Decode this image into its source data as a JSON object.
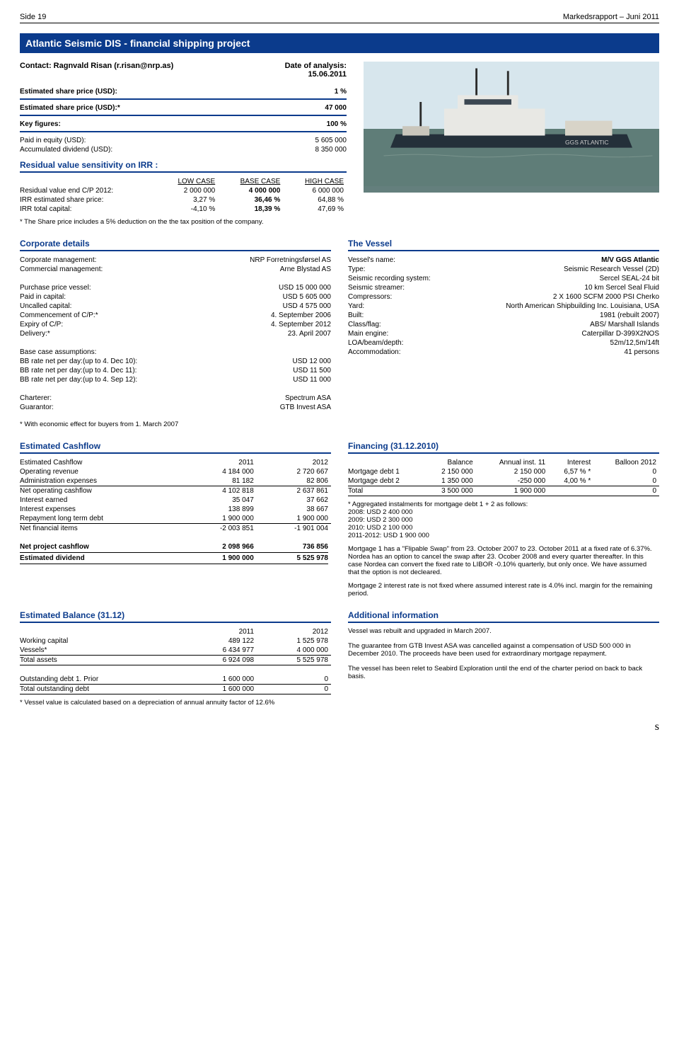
{
  "header": {
    "left": "Side 19",
    "right": "Markedsrapport – Juni 2011"
  },
  "title": "Atlantic Seismic DIS - financial shipping project",
  "contact": "Contact: Ragnvald Risan (r.risan@nrp.as)",
  "analysis": {
    "label": "Date of analysis:",
    "date": "15.06.2011"
  },
  "estimates": {
    "est_price_label": "Estimated share price (USD):",
    "est_price_value": "1 %",
    "est_price_star_label": "Estimated share price (USD):*",
    "est_price_star_value": "47 000",
    "key_figures_label": "Key figures:",
    "key_figures_value": "100 %",
    "paid_equity_label": "Paid in equity (USD):",
    "paid_equity_value": "5 605 000",
    "acc_div_label": "Accumulated dividend (USD):",
    "acc_div_value": "8 350 000"
  },
  "sensitivity": {
    "heading": "Residual value sensitivity on IRR :",
    "cols": [
      "",
      "LOW CASE",
      "BASE CASE",
      "HIGH CASE"
    ],
    "rows": [
      [
        "Residual value end C/P 2012:",
        "2 000 000",
        "4 000 000",
        "6 000 000"
      ],
      [
        "IRR estimated share price:",
        "3,27 %",
        "36,46 %",
        "64,88 %"
      ],
      [
        "IRR total capital:",
        "-4,10 %",
        "18,39 %",
        "47,69 %"
      ]
    ],
    "note": "* The Share price includes a 5% deduction on the the tax position of the company."
  },
  "corporate": {
    "heading": "Corporate details",
    "rows": [
      [
        "Corporate management:",
        "NRP Forretningsførsel AS"
      ],
      [
        "Commercial management:",
        "Arne Blystad AS"
      ],
      [
        "",
        ""
      ],
      [
        "Purchase price vessel:",
        "USD 15 000 000"
      ],
      [
        "Paid in capital:",
        "USD 5 605 000"
      ],
      [
        "Uncalled capital:",
        "USD 4 575 000"
      ],
      [
        "Commencement of C/P:*",
        "4. September 2006"
      ],
      [
        "Expiry of C/P:",
        "4. September 2012"
      ],
      [
        "Delivery:*",
        "23. April 2007"
      ],
      [
        "",
        ""
      ],
      [
        "Base case assumptions:",
        ""
      ],
      [
        "BB rate net per day:(up to 4. Dec 10):",
        "USD 12 000"
      ],
      [
        "BB rate net per day:(up to 4. Dec 11):",
        "USD 11 500"
      ],
      [
        "BB rate net per day:(up to 4. Sep 12):",
        "USD 11 000"
      ],
      [
        "",
        ""
      ],
      [
        "Charterer:",
        "Spectrum ASA"
      ],
      [
        "Guarantor:",
        "GTB Invest ASA"
      ]
    ],
    "buyers_note": "* With economic effect for buyers from 1. March 2007"
  },
  "vessel": {
    "heading": "The Vessel",
    "rows": [
      [
        "Vessel's name:",
        "M/V GGS Atlantic"
      ],
      [
        "Type:",
        "Seismic Research Vessel (2D)"
      ],
      [
        "Seismic recording system:",
        "Sercel SEAL-24 bit"
      ],
      [
        "Seismic streamer:",
        "10 km Sercel Seal Fluid"
      ],
      [
        "Compressors:",
        "2 X 1600 SCFM 2000 PSI Cherko"
      ],
      [
        "Yard:",
        "North American Shipbuilding Inc. Louisiana, USA"
      ],
      [
        "Built:",
        "1981 (rebuilt 2007)"
      ],
      [
        "Class/flag:",
        "ABS/ Marshall Islands"
      ],
      [
        "Main engine:",
        "Caterpillar D-399X2NOS"
      ],
      [
        "LOA/beam/depth:",
        "52m/12,5m/14ft"
      ],
      [
        "Accommodation:",
        "41 persons"
      ]
    ]
  },
  "cashflow": {
    "heading": "Estimated Cashflow",
    "header": [
      "Estimated Cashflow",
      "2011",
      "2012"
    ],
    "rows": [
      [
        "Operating revenue",
        "4 184 000",
        "2 720 667"
      ],
      [
        "Administration expenses",
        "81 182",
        "82 806"
      ],
      [
        "Net operating cashflow",
        "4 102 818",
        "2 637 861"
      ],
      [
        "Interest earned",
        "35 047",
        "37 662"
      ],
      [
        "Interest expenses",
        "138 899",
        "38 667"
      ],
      [
        "Repayment long term debt",
        "1 900 000",
        "1 900 000"
      ],
      [
        "Net financial items",
        "-2 003 851",
        "-1 901 004"
      ]
    ],
    "net_project": [
      "Net project cashflow",
      "2 098 966",
      "736 856"
    ],
    "est_dividend": [
      "Estimated dividend",
      "1 900 000",
      "5 525 978"
    ]
  },
  "financing": {
    "heading": "Financing (31.12.2010)",
    "header": [
      "",
      "Balance",
      "Annual inst. 11",
      "Interest",
      "Balloon 2012"
    ],
    "rows": [
      [
        "Mortgage debt 1",
        "2 150 000",
        "2 150 000",
        "6,57 % *",
        "0"
      ],
      [
        "Mortgage debt 2",
        "1 350 000",
        "-250 000",
        "4,00 % *",
        "0"
      ]
    ],
    "total": [
      "Total",
      "3 500 000",
      "1 900 000",
      "",
      "0"
    ],
    "notes": [
      "* Aggregated instalments for mortgage debt 1 + 2 as follows:",
      "2008: USD 2 400 000",
      "2009: USD 2 300 000",
      "2010: USD 2 100 000",
      "2011-2012: USD 1 900 000"
    ],
    "para1": "Mortgage 1 has a \"Flipable Swap\" from 23. October 2007 to 23. October 2011 at a fixed rate of 6.37%. Nordea has an option to cancel the swap after 23. Ocober 2008 and every quarter thereafter. In this case Nordea can convert the fixed rate to LIBOR -0.10% quarterly, but only once. We have assumed that the option is not decleared.",
    "para2": "Mortgage 2 interest rate is not fixed where assumed interest rate is 4.0% incl. margin for the remaining period."
  },
  "balance": {
    "heading": "Estimated Balance (31.12)",
    "header": [
      "",
      "2011",
      "2012"
    ],
    "rows": [
      [
        "Working capital",
        "489 122",
        "1 525 978"
      ],
      [
        "Vessels*",
        "6 434 977",
        "4 000 000"
      ],
      [
        "Total assets",
        "6 924 098",
        "5 525 978"
      ]
    ],
    "debt_rows": [
      [
        "Outstanding debt 1. Prior",
        "1 600 000",
        "0"
      ],
      [
        "Total outstanding debt",
        "1 600 000",
        "0"
      ]
    ],
    "note": "* Vessel value is calculated based on a depreciation of annual annuity factor of 12.6%"
  },
  "additional": {
    "heading": "Additional information",
    "paras": [
      "Vessel was rebuilt and upgraded in March 2007.",
      "The guarantee from GTB Invest ASA was cancelled against a compensation of USD 500 000 in December 2010. The proceeds have been used for extraordinary mortgage repayment.",
      "The vessel has been relet to Seabird Exploration until the end of the charter period on back to back basis."
    ]
  },
  "bottom_s": "s"
}
